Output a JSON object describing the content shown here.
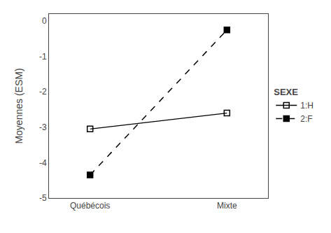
{
  "chart_data": {
    "type": "line",
    "categories": [
      "Québécois",
      "Mixte"
    ],
    "series": [
      {
        "name": "1:H",
        "color": "#000000",
        "values": [
          -3.05,
          -2.6
        ],
        "line_style": "solid",
        "marker": "square-open"
      },
      {
        "name": "2:F",
        "color": "#000000",
        "values": [
          -4.35,
          -0.25
        ],
        "line_style": "dashed",
        "marker": "square"
      }
    ],
    "y_label": "Moyennes (ESM)",
    "legend_title": "SEXE",
    "legend": "right",
    "ylim": [
      -5,
      0.2
    ],
    "yticks": [
      0,
      -1,
      -2,
      -3,
      -4,
      -5
    ],
    "grid": false
  }
}
